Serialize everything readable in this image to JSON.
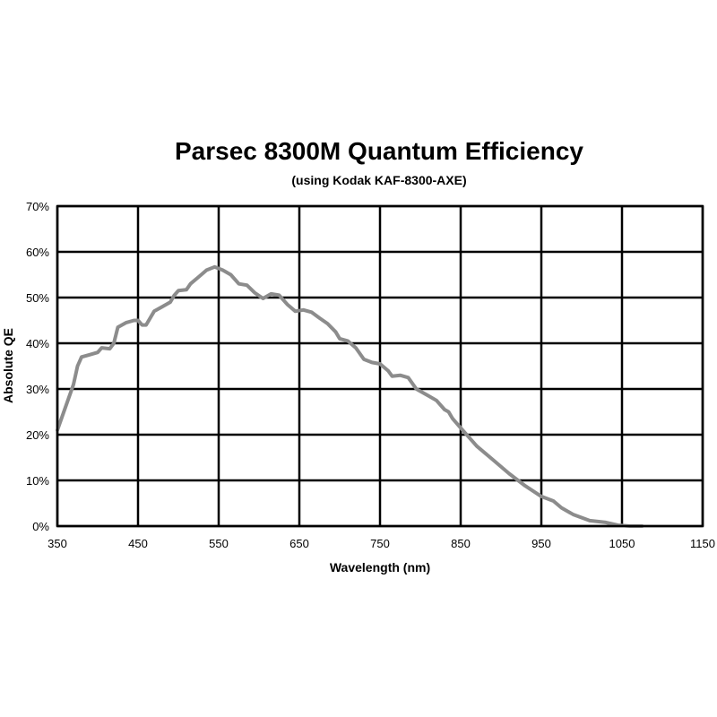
{
  "chart_data": {
    "type": "line",
    "title": "Parsec 8300M Quantum Efficiency",
    "subtitle": "(using Kodak KAF-8300-AXE)",
    "xlabel": "Wavelength (nm)",
    "ylabel": "Absolute QE",
    "xlim": [
      350,
      1150
    ],
    "ylim": [
      0,
      70
    ],
    "grid": true,
    "line_color": "#8c8c8c",
    "x_ticks": [
      "350",
      "450",
      "550",
      "650",
      "750",
      "850",
      "950",
      "1050",
      "1150"
    ],
    "y_ticks": [
      "0%",
      "10%",
      "20%",
      "30%",
      "40%",
      "50%",
      "60%",
      "70%"
    ],
    "x": [
      350,
      360,
      370,
      375,
      380,
      390,
      400,
      405,
      415,
      420,
      425,
      435,
      445,
      450,
      455,
      460,
      470,
      480,
      490,
      495,
      500,
      510,
      515,
      525,
      535,
      545,
      555,
      565,
      575,
      585,
      595,
      605,
      615,
      625,
      635,
      645,
      655,
      665,
      675,
      685,
      695,
      700,
      710,
      720,
      730,
      740,
      750,
      760,
      765,
      775,
      785,
      795,
      810,
      820,
      830,
      835,
      840,
      850,
      870,
      890,
      910,
      930,
      950,
      965,
      975,
      990,
      1010,
      1030,
      1045,
      1060,
      1075
    ],
    "y": [
      21,
      26,
      31,
      35,
      37,
      37.5,
      38,
      39,
      38.8,
      40,
      43.5,
      44.5,
      45,
      45,
      44,
      44,
      47,
      48,
      49,
      50.5,
      51.5,
      51.7,
      53,
      54.5,
      56,
      56.7,
      56,
      55,
      53,
      52.7,
      51,
      49.8,
      50.8,
      50.5,
      48.5,
      47,
      47.3,
      46.8,
      45.5,
      44.3,
      42.5,
      41,
      40.5,
      39,
      36.5,
      35.8,
      35.5,
      34,
      32.8,
      33,
      32.5,
      30,
      28.5,
      27.5,
      25.5,
      25,
      23.5,
      21.5,
      17.5,
      14.5,
      11.5,
      8.8,
      6.5,
      5.5,
      4,
      2.5,
      1.2,
      0.8,
      0.2,
      0,
      0
    ]
  }
}
